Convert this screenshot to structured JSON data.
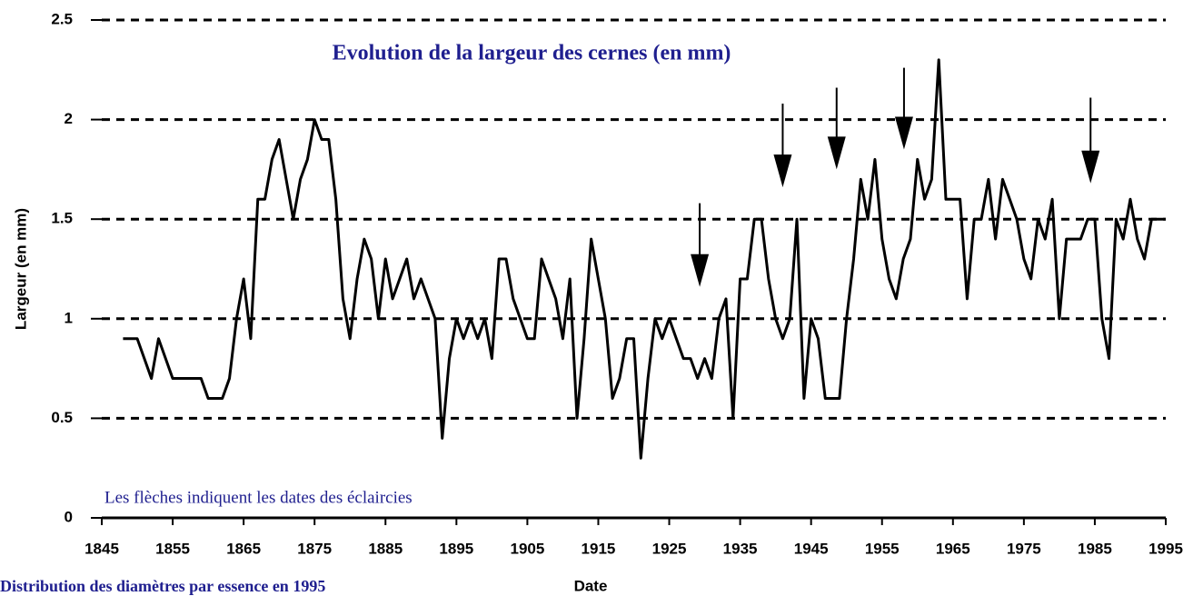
{
  "chart_data": {
    "type": "line",
    "title": "Evolution de la largeur des cernes (en mm)",
    "note": "Les flèches indiquent les dates des éclaircies",
    "xlabel": "Date",
    "ylabel": "Largeur (en mm)",
    "footer": "Distribution des diamètres par essence en 1995",
    "x": [
      1848,
      1849,
      1850,
      1851,
      1852,
      1853,
      1854,
      1855,
      1856,
      1857,
      1858,
      1859,
      1860,
      1861,
      1862,
      1863,
      1864,
      1865,
      1866,
      1867,
      1868,
      1869,
      1870,
      1871,
      1872,
      1873,
      1874,
      1875,
      1876,
      1877,
      1878,
      1879,
      1880,
      1881,
      1882,
      1883,
      1884,
      1885,
      1886,
      1887,
      1888,
      1889,
      1890,
      1891,
      1892,
      1893,
      1894,
      1895,
      1896,
      1897,
      1898,
      1899,
      1900,
      1901,
      1902,
      1903,
      1904,
      1905,
      1906,
      1907,
      1908,
      1909,
      1910,
      1911,
      1912,
      1913,
      1914,
      1915,
      1916,
      1917,
      1918,
      1919,
      1920,
      1921,
      1922,
      1923,
      1924,
      1925,
      1926,
      1927,
      1928,
      1929,
      1930,
      1931,
      1932,
      1933,
      1934,
      1935,
      1936,
      1937,
      1938,
      1939,
      1940,
      1941,
      1942,
      1943,
      1944,
      1945,
      1946,
      1947,
      1948,
      1949,
      1950,
      1951,
      1952,
      1953,
      1954,
      1955,
      1956,
      1957,
      1958,
      1959,
      1960,
      1961,
      1962,
      1963,
      1964,
      1965,
      1966,
      1967,
      1968,
      1969,
      1970,
      1971,
      1972,
      1973,
      1974,
      1975,
      1976,
      1977,
      1978,
      1979,
      1980,
      1981,
      1982,
      1983,
      1984,
      1985,
      1986,
      1987,
      1988,
      1989,
      1990,
      1991,
      1992,
      1993,
      1994,
      1995
    ],
    "series": [
      {
        "name": "Largeur",
        "color": "#000000",
        "values": [
          0.9,
          0.9,
          0.9,
          0.8,
          0.7,
          0.9,
          0.8,
          0.7,
          0.7,
          0.7,
          0.7,
          0.7,
          0.6,
          0.6,
          0.6,
          0.7,
          1.0,
          1.2,
          0.9,
          1.6,
          1.6,
          1.8,
          1.9,
          1.7,
          1.5,
          1.7,
          1.8,
          2.0,
          1.9,
          1.9,
          1.6,
          1.1,
          0.9,
          1.2,
          1.4,
          1.3,
          1.0,
          1.3,
          1.1,
          1.2,
          1.3,
          1.1,
          1.2,
          1.1,
          1.0,
          0.4,
          0.8,
          1.0,
          0.9,
          1.0,
          0.9,
          1.0,
          0.8,
          1.3,
          1.3,
          1.1,
          1.0,
          0.9,
          0.9,
          1.3,
          1.2,
          1.1,
          0.9,
          1.2,
          0.5,
          0.9,
          1.4,
          1.2,
          1.0,
          0.6,
          0.7,
          0.9,
          0.9,
          0.3,
          0.7,
          1.0,
          0.9,
          1.0,
          0.9,
          0.8,
          0.8,
          0.7,
          0.8,
          0.7,
          1.0,
          1.1,
          0.5,
          1.2,
          1.2,
          1.5,
          1.5,
          1.2,
          1.0,
          0.9,
          1.0,
          1.5,
          0.6,
          1.0,
          0.9,
          0.6,
          0.6,
          0.6,
          1.0,
          1.3,
          1.7,
          1.5,
          1.8,
          1.4,
          1.2,
          1.1,
          1.3,
          1.4,
          1.8,
          1.6,
          1.7,
          2.3,
          1.6,
          1.6,
          1.6,
          1.1,
          1.5,
          1.5,
          1.7,
          1.4,
          1.7,
          1.6,
          1.5,
          1.3,
          1.2,
          1.5,
          1.4,
          1.6,
          1.0,
          1.4,
          1.4,
          1.4,
          1.5,
          1.5,
          1.0,
          0.8,
          1.5,
          1.4,
          1.6,
          1.4,
          1.3,
          1.5,
          1.5,
          1.5
        ]
      }
    ],
    "arrows": [
      {
        "x": 1929.3,
        "y": [
          1.58,
          1.16
        ]
      },
      {
        "x": 1941,
        "y": [
          2.08,
          1.66
        ]
      },
      {
        "x": 1948.6,
        "y": [
          2.16,
          1.75
        ]
      },
      {
        "x": 1958.1,
        "y": [
          2.26,
          1.85
        ]
      },
      {
        "x": 1984.4,
        "y": [
          2.11,
          1.68
        ]
      }
    ],
    "xlim": [
      1845,
      1995
    ],
    "xticks": [
      1845,
      1855,
      1865,
      1875,
      1885,
      1895,
      1905,
      1915,
      1925,
      1935,
      1945,
      1955,
      1965,
      1975,
      1985,
      1995
    ],
    "ylim": [
      0,
      2.5
    ],
    "yticks": [
      0,
      0.5,
      1,
      1.5,
      2,
      2.5
    ],
    "grid": true
  }
}
